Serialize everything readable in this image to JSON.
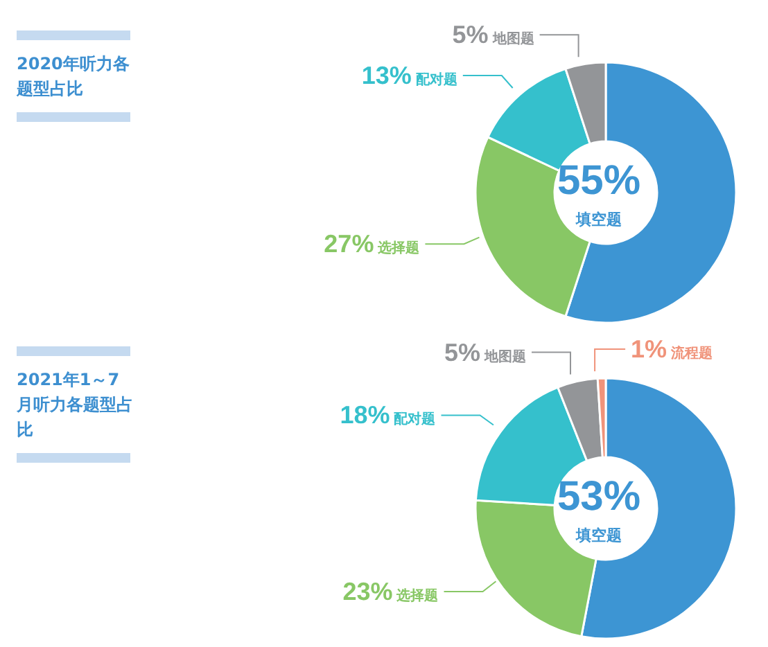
{
  "chart_data": [
    {
      "type": "donut",
      "title": "2020年听力各题型占比",
      "categories": [
        "填空题",
        "选择题",
        "配对题",
        "地图题"
      ],
      "values": [
        55,
        27,
        13,
        5
      ],
      "value_labels": [
        "55%",
        "27%",
        "13%",
        "5%"
      ],
      "colors": [
        "#3d95d3",
        "#88c765",
        "#35c0cc",
        "#939598"
      ]
    },
    {
      "type": "donut",
      "title": "2021年1～7月听力各题型占比",
      "categories": [
        "填空题",
        "选择题",
        "配对题",
        "地图题",
        "流程题"
      ],
      "values": [
        53,
        23,
        18,
        5,
        1
      ],
      "value_labels": [
        "53%",
        "23%",
        "18%",
        "5%",
        "1%"
      ],
      "colors": [
        "#3d95d3",
        "#88c765",
        "#35c0cc",
        "#939598",
        "#f0937a"
      ]
    }
  ]
}
